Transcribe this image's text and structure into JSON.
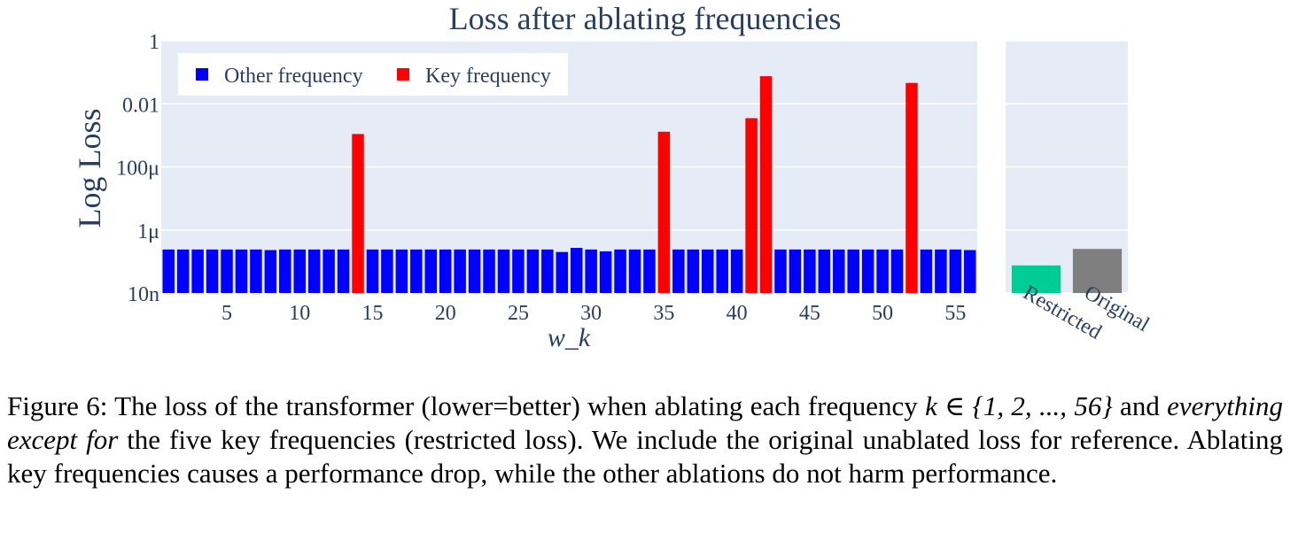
{
  "chart_data": [
    {
      "type": "bar",
      "title": "Loss after ablating frequencies",
      "xlabel": "w_k",
      "ylabel": "Log Loss",
      "yscale": "log",
      "ylim": [
        1e-08,
        1
      ],
      "ytick_values": [
        1,
        0.01,
        0.0001,
        1e-06,
        1e-08
      ],
      "ytick_labels": [
        "1",
        "0.01",
        "100μ",
        "1μ",
        "10n"
      ],
      "xtick_values": [
        5,
        10,
        15,
        20,
        25,
        30,
        35,
        40,
        45,
        50,
        55
      ],
      "xtick_labels": [
        "5",
        "10",
        "15",
        "20",
        "25",
        "30",
        "35",
        "40",
        "45",
        "50",
        "55"
      ],
      "xlim": [
        0.5,
        56.5
      ],
      "grid": true,
      "legend_position": "top-left",
      "series": [
        {
          "name": "Other frequency",
          "color": "#0000ff",
          "x": [
            1,
            2,
            3,
            4,
            5,
            6,
            7,
            8,
            9,
            10,
            11,
            12,
            13,
            15,
            16,
            17,
            18,
            19,
            20,
            21,
            22,
            23,
            24,
            25,
            26,
            27,
            28,
            29,
            30,
            31,
            32,
            33,
            34,
            36,
            37,
            38,
            39,
            40,
            43,
            44,
            45,
            46,
            47,
            48,
            49,
            50,
            51,
            53,
            54,
            55,
            56
          ],
          "values": [
            2.4e-07,
            2.4e-07,
            2.4e-07,
            2.4e-07,
            2.4e-07,
            2.4e-07,
            2.4e-07,
            2.3e-07,
            2.4e-07,
            2.4e-07,
            2.4e-07,
            2.4e-07,
            2.4e-07,
            2.4e-07,
            2.4e-07,
            2.4e-07,
            2.4e-07,
            2.4e-07,
            2.4e-07,
            2.4e-07,
            2.4e-07,
            2.4e-07,
            2.4e-07,
            2.4e-07,
            2.4e-07,
            2.4e-07,
            2e-07,
            2.7e-07,
            2.4e-07,
            2.1e-07,
            2.4e-07,
            2.4e-07,
            2.4e-07,
            2.4e-07,
            2.4e-07,
            2.4e-07,
            2.4e-07,
            2.4e-07,
            2.4e-07,
            2.4e-07,
            2.4e-07,
            2.4e-07,
            2.4e-07,
            2.4e-07,
            2.4e-07,
            2.4e-07,
            2.4e-07,
            2.4e-07,
            2.4e-07,
            2.4e-07,
            2.3e-07
          ]
        },
        {
          "name": "Key frequency",
          "color": "#ff0000",
          "x": [
            14,
            35,
            41,
            42,
            52
          ],
          "values": [
            0.0011,
            0.0013,
            0.0035,
            0.075,
            0.046
          ]
        }
      ]
    },
    {
      "type": "bar",
      "yscale": "log",
      "ylim": [
        1e-08,
        1
      ],
      "grid": true,
      "categories": [
        "Restricted",
        "Original"
      ],
      "values": [
        7.5e-08,
        2.5e-07
      ],
      "colors": [
        "#00cc96",
        "#7f7f7f"
      ]
    }
  ],
  "caption": {
    "part1": "Figure 6: The loss of the transformer (lower=better) when ablating each frequency ",
    "math": "k ∈ {1, 2, ..., 56}",
    "part2": " and ",
    "emph": "everything except for",
    "part3": " the five key frequencies (restricted loss). We include the original unablated loss for reference. Ablating key frequencies causes a performance drop, while the other ablations do not harm performance."
  }
}
